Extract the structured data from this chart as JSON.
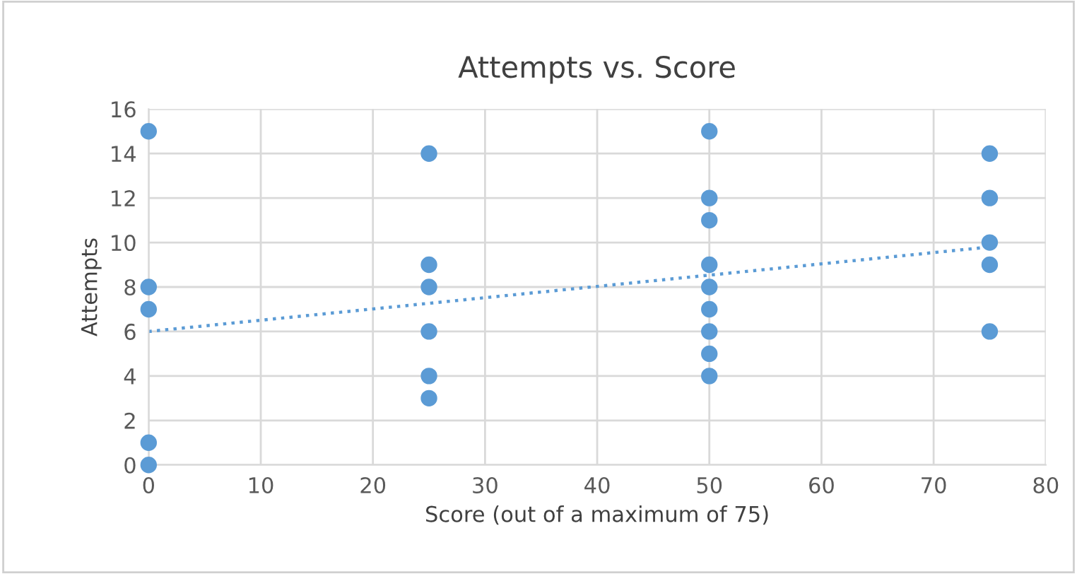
{
  "chart_data": {
    "type": "scatter",
    "title": "Attempts vs. Score",
    "xlabel": "Score (out of a maximum of 75)",
    "ylabel": "Attempts",
    "xlim": [
      0,
      80
    ],
    "xticks": [
      0,
      10,
      20,
      30,
      40,
      50,
      60,
      70,
      80
    ],
    "ylim": [
      0,
      16
    ],
    "yticks": [
      0,
      2,
      4,
      6,
      8,
      10,
      12,
      14,
      16
    ],
    "grid": true,
    "series": [
      {
        "type": "scatter",
        "marker": "circle",
        "color": "#5b9bd5",
        "x": [
          0,
          0,
          0,
          0,
          0,
          25,
          25,
          25,
          25,
          25,
          25,
          50,
          50,
          50,
          50,
          50,
          50,
          50,
          50,
          50,
          75,
          75,
          75,
          75,
          75
        ],
        "values": [
          15,
          8,
          7,
          1,
          0,
          14,
          9,
          8,
          6,
          4,
          3,
          15,
          12,
          11,
          9,
          8,
          7,
          6,
          5,
          4,
          14,
          12,
          10,
          9,
          6
        ]
      },
      {
        "type": "line",
        "color": "#5b9bd5",
        "line_style": "dotted",
        "x": [
          0,
          75
        ],
        "values": [
          6,
          9.8
        ]
      }
    ]
  }
}
